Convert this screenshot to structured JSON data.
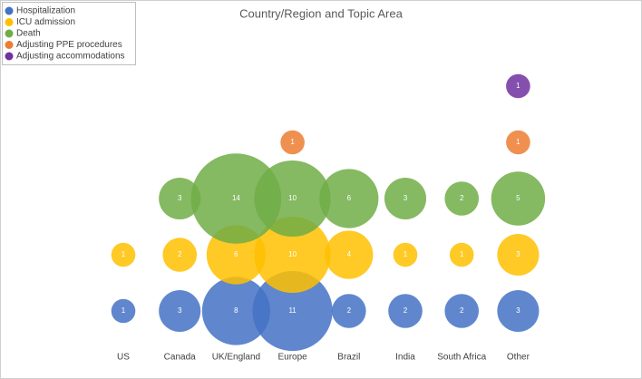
{
  "chart_data": {
    "type": "bubble",
    "title": "Country/Region and Topic Area",
    "categories": [
      "US",
      "Canada",
      "UK/England",
      "Europe",
      "Brazil",
      "India",
      "South Africa",
      "Other"
    ],
    "series": [
      {
        "name": "Hospitalization",
        "color": "#4472c4",
        "values": [
          1,
          3,
          8,
          11,
          2,
          2,
          2,
          3
        ]
      },
      {
        "name": "ICU admission",
        "color": "#ffc000",
        "values": [
          1,
          2,
          6,
          10,
          4,
          1,
          1,
          3
        ]
      },
      {
        "name": "Death",
        "color": "#70ad47",
        "values": [
          null,
          3,
          14,
          10,
          6,
          3,
          2,
          5
        ]
      },
      {
        "name": "Adjusting PPE procedures",
        "color": "#ed7d31",
        "values": [
          null,
          null,
          null,
          1,
          null,
          null,
          null,
          1
        ]
      },
      {
        "name": "Adjusting accommodations",
        "color": "#7030a0",
        "values": [
          null,
          null,
          null,
          null,
          null,
          null,
          null,
          1
        ]
      }
    ],
    "legend": "top-left"
  }
}
